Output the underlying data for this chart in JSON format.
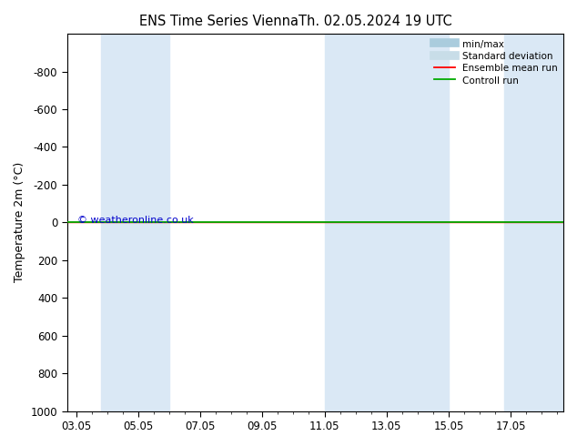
{
  "title_left": "ENS Time Series Vienna",
  "title_right": "Th. 02.05.2024 19 UTC",
  "ylabel": "Temperature 2m (°C)",
  "ylim": [
    1000,
    -1000
  ],
  "yticks": [
    -800,
    -600,
    -400,
    -200,
    0,
    200,
    400,
    600,
    800,
    1000
  ],
  "xticks_labels": [
    "03.05",
    "05.05",
    "07.05",
    "09.05",
    "11.05",
    "13.05",
    "15.05",
    "17.05"
  ],
  "xtick_positions": [
    0,
    2,
    4,
    6,
    8,
    10,
    12,
    14
  ],
  "xlim": [
    -0.3,
    15.7
  ],
  "blue_bands": [
    [
      0.8,
      3.0
    ],
    [
      8.0,
      10.8
    ],
    [
      10.8,
      12.0
    ],
    [
      13.8,
      15.7
    ]
  ],
  "band_color": "#dae8f5",
  "line_y": 0,
  "green_line_color": "#00aa00",
  "red_line_color": "#ff0000",
  "watermark": "© weatheronline.co.uk",
  "watermark_color": "#0000cc",
  "bg_color": "#ffffff",
  "plot_bg_color": "#ffffff",
  "legend_labels": [
    "min/max",
    "Standard deviation",
    "Ensemble mean run",
    "Controll run"
  ],
  "minmax_color": "#aaccdd",
  "std_color": "#c8dde8",
  "title_fontsize": 10.5,
  "tick_fontsize": 8.5,
  "ylabel_fontsize": 9
}
